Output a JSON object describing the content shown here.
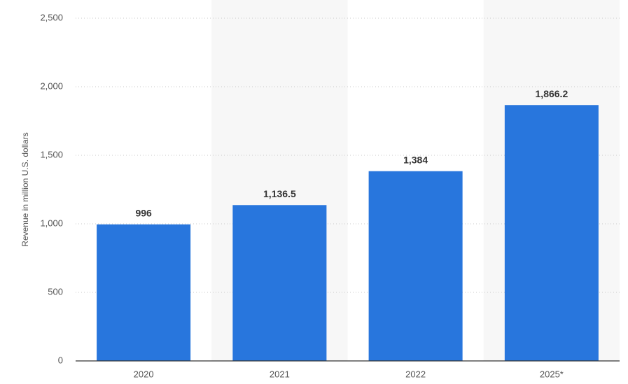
{
  "chart_data": {
    "type": "bar",
    "y_label": "Revenue in million U.S. dollars",
    "categories": [
      "2020",
      "2021",
      "2022",
      "2025*"
    ],
    "values": [
      996,
      1136.5,
      1384,
      1866.2
    ],
    "value_labels": [
      "996",
      "1,136.5",
      "1,384",
      "1,866.2"
    ],
    "color": "#2876dd",
    "ylim": [
      0,
      2500
    ],
    "yticks": [
      0,
      500,
      {
        "value": 1000,
        "label": "1,000"
      },
      {
        "value": 1500,
        "label": "1,500"
      },
      {
        "value": 2000,
        "label": "2,000"
      },
      {
        "value": 2500,
        "label": "2,500"
      }
    ],
    "grid": true
  }
}
